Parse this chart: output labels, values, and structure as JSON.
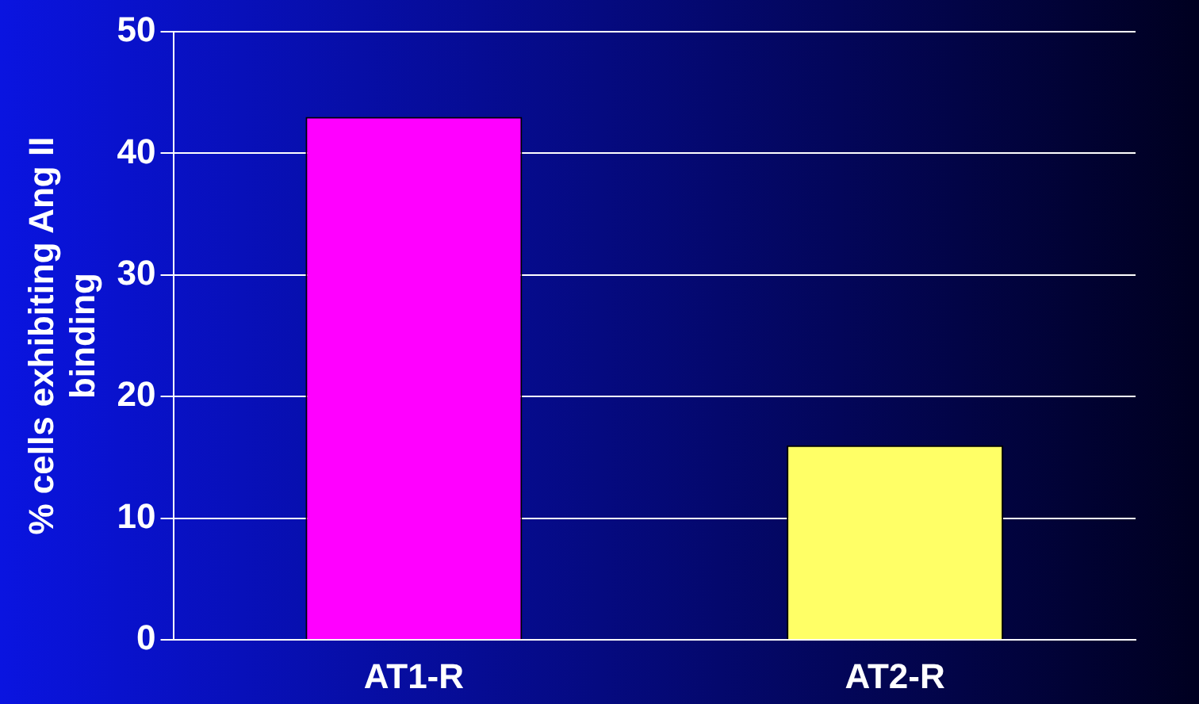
{
  "chart_data": {
    "type": "bar",
    "ylabel": "% cells exhibiting Ang II binding",
    "categories": [
      "AT1-R",
      "AT2-R"
    ],
    "values": [
      43,
      16
    ],
    "colors": [
      "#ff00ff",
      "#ffff66"
    ],
    "ylim": [
      0,
      50
    ],
    "yticks": [
      0,
      10,
      20,
      30,
      40,
      50
    ],
    "grid": "y",
    "legend": false
  }
}
